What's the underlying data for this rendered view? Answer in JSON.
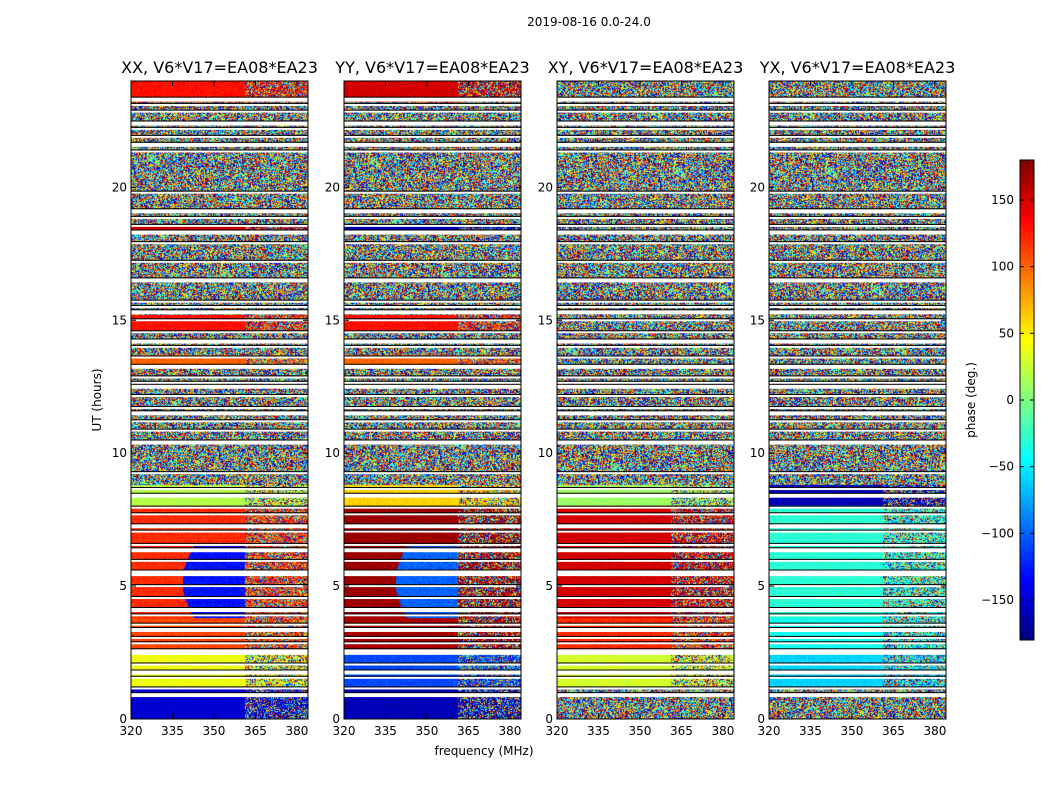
{
  "chart_data": {
    "type": "heatmap",
    "suptitle": "2019-08-16 0.0-24.0",
    "ylabel": "UT (hours)",
    "xlabel": "frequency (MHz)",
    "xlim": [
      320,
      384
    ],
    "ylim": [
      0,
      24
    ],
    "xticks": [
      320,
      335,
      350,
      365,
      380
    ],
    "yticks": [
      0,
      5,
      10,
      15,
      20
    ],
    "colorbar": {
      "label": "phase (deg.)",
      "range": [
        -180,
        180
      ],
      "ticks": [
        -150,
        -100,
        -50,
        0,
        50,
        100,
        150
      ],
      "tick_labels": [
        "−150",
        "−100",
        "−50",
        "0",
        "50",
        "100",
        "150"
      ],
      "colormap": [
        "#00007f",
        "#0000ff",
        "#007fff",
        "#00ffff",
        "#7fff7f",
        "#ffff00",
        "#ff7f00",
        "#ff0000",
        "#7f0000"
      ]
    },
    "rfi_break_mhz": 361,
    "gaps_hours": [
      0.9,
      1.15,
      1.55,
      1.75,
      2.05,
      2.45,
      2.55,
      2.85,
      3.05,
      3.35,
      3.55,
      3.9,
      4.1,
      4.55,
      5.0,
      5.45,
      5.55,
      5.95,
      6.35,
      6.55,
      7.05,
      7.25,
      7.7,
      7.95,
      8.4,
      8.65,
      9.25,
      10.4,
      10.85,
      11.2,
      11.5,
      11.7,
      12.15,
      12.5,
      12.65,
      12.85,
      13.25,
      13.6,
      14.0,
      14.2,
      14.55,
      15.0,
      15.3,
      15.5,
      15.7,
      16.5,
      17.2,
      17.9,
      18.3,
      18.55,
      18.85,
      19.1,
      19.8,
      21.35,
      21.6,
      21.9,
      22.2,
      22.4,
      22.85,
      23.1,
      23.3
    ],
    "panels": [
      {
        "title": "XX, V6*V17=EA08*EA23",
        "coherent": [
          [
            0.0,
            1.2,
            -150
          ],
          [
            1.2,
            2.5,
            40
          ],
          [
            2.5,
            3.8,
            110
          ],
          [
            3.8,
            8.0,
            120
          ],
          [
            8.0,
            8.8,
            20
          ],
          [
            13.2,
            13.7,
            100
          ],
          [
            14.6,
            15.2,
            130
          ],
          [
            18.3,
            18.6,
            150
          ],
          [
            23.2,
            24.0,
            130
          ]
        ],
        "turn": [
          3.8,
          6.5,
          8.0,
          -130
        ]
      },
      {
        "title": "YY, V6*V17=EA08*EA23",
        "coherent": [
          [
            0.0,
            1.2,
            -160
          ],
          [
            1.2,
            2.5,
            -110
          ],
          [
            2.5,
            3.8,
            165
          ],
          [
            3.8,
            8.0,
            170
          ],
          [
            8.0,
            8.8,
            60
          ],
          [
            13.2,
            13.7,
            100
          ],
          [
            14.6,
            15.2,
            130
          ],
          [
            18.3,
            18.6,
            -160
          ],
          [
            23.2,
            24.0,
            150
          ]
        ],
        "turn": [
          3.8,
          6.5,
          8.0,
          -100
        ]
      },
      {
        "title": "XY, V6*V17=EA08*EA23",
        "coherent": [
          [
            1.2,
            2.5,
            30
          ],
          [
            2.5,
            3.8,
            120
          ],
          [
            3.8,
            8.0,
            150
          ],
          [
            8.0,
            8.8,
            10
          ]
        ],
        "turn": null
      },
      {
        "title": "YX, V6*V17=EA08*EA23",
        "coherent": [
          [
            1.2,
            2.5,
            -60
          ],
          [
            2.5,
            3.8,
            -40
          ],
          [
            3.8,
            8.0,
            -30
          ],
          [
            8.0,
            8.8,
            -160
          ]
        ],
        "turn": null
      }
    ]
  }
}
